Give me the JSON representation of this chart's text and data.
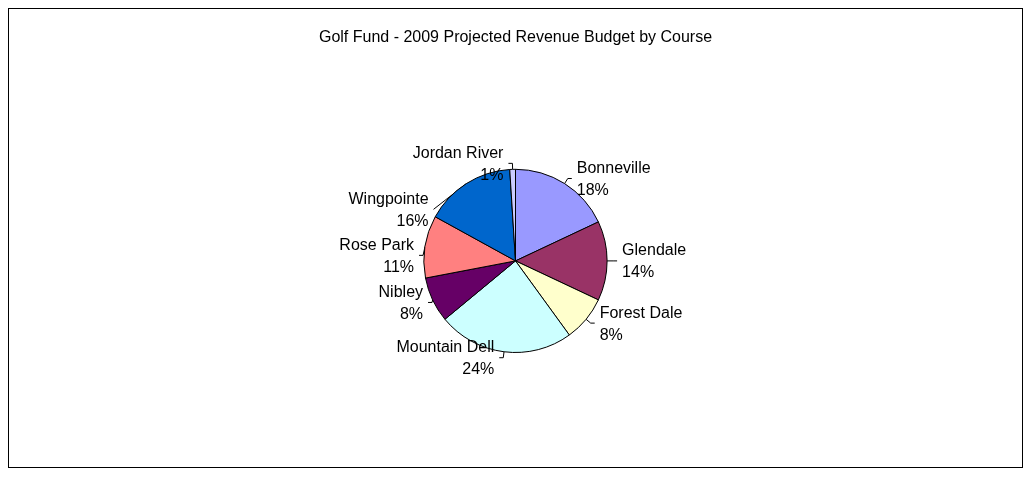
{
  "chart_data": {
    "type": "pie",
    "title": "Golf Fund - 2009 Projected Revenue Budget by Course",
    "categories": [
      "Bonneville",
      "Glendale",
      "Forest Dale",
      "Mountain Dell",
      "Nibley",
      "Rose Park",
      "Wingpointe",
      "Jordan River"
    ],
    "values": [
      18,
      14,
      8,
      24,
      8,
      11,
      16,
      1
    ],
    "value_labels": [
      "18%",
      "14%",
      "8%",
      "24%",
      "8%",
      "11%",
      "16%",
      "1%"
    ],
    "colors": [
      "#9999ff",
      "#993366",
      "#ffffcc",
      "#ccffff",
      "#660066",
      "#ff8080",
      "#0066cc",
      "#ccccff"
    ],
    "legend": false
  }
}
